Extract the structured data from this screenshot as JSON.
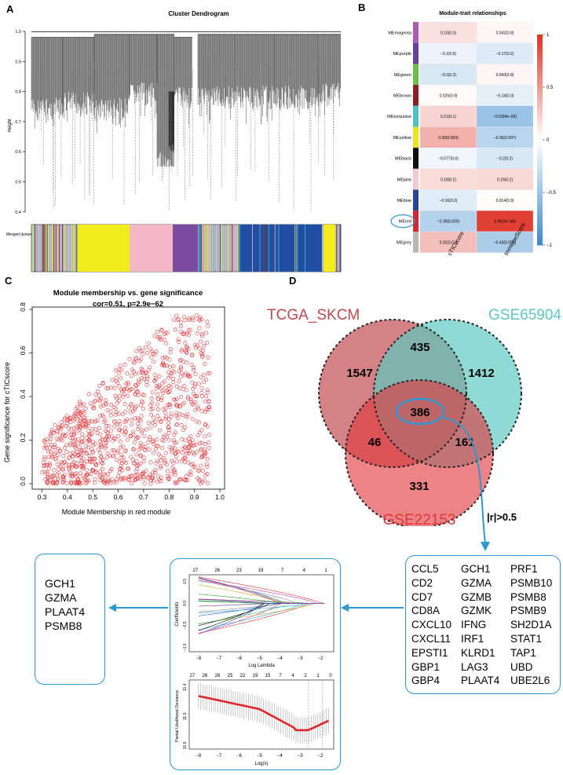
{
  "panels": {
    "a": "A",
    "b": "B",
    "c": "C",
    "d": "D"
  },
  "dendro": {
    "title": "Cluster Dendrogram",
    "ylabel": "Height",
    "yticks": [
      "1.0",
      "0.9",
      "0.8",
      "0.7",
      "0.6",
      "0.5",
      "0.4"
    ],
    "track_label": "Merged dynamic",
    "colors": {
      "gray": "#b5b7c4",
      "yellow": "#f3ec1c",
      "pink": "#f4b7c8",
      "purple": "#7b4aa1",
      "blue": "#1f4ea2",
      "turquoise": "#48c1c4",
      "brown": "#8d2b22"
    }
  },
  "heatmap": {
    "title": "Module-trait relationships",
    "columns": [
      "cTICscore",
      "ImmuneScore"
    ],
    "rows": [
      {
        "name": "MEmagenta",
        "color": "#b158b5",
        "c1": "0.15(0.3)",
        "c2": "0.042(0.8)",
        "v1": 0.15,
        "v2": 0.042
      },
      {
        "name": "MEpurple",
        "color": "#6a3f9f",
        "c1": "−0.1(0.5)",
        "c2": "−0.17(0.2)",
        "v1": -0.1,
        "v2": -0.17
      },
      {
        "name": "MEgreen",
        "color": "#6cc04a",
        "c1": "−0.2(0.2)",
        "c2": "0.043(0.8)",
        "v1": -0.2,
        "v2": 0.043
      },
      {
        "name": "MEbrown",
        "color": "#8c1f1f",
        "c1": "0.025(0.9)",
        "c2": "−0.14(0.3)",
        "v1": 0.025,
        "v2": -0.14
      },
      {
        "name": "MEturquoise",
        "color": "#49c3c6",
        "c1": "0.21(0.1)",
        "c2": "−0.53(4e−05)",
        "v1": 0.21,
        "v2": -0.53
      },
      {
        "name": "MEyellow",
        "color": "#efe41c",
        "c1": "0.39(0.003)",
        "c2": "−0.36(0.007)",
        "v1": 0.39,
        "v2": -0.36
      },
      {
        "name": "MEblack",
        "color": "#111111",
        "c1": "−0.077(0.6)",
        "c2": "−0.2(0.2)",
        "v1": -0.077,
        "v2": -0.2
      },
      {
        "name": "MEpink",
        "color": "#f6c7d1",
        "c1": "0.18(0.2)",
        "c2": "0.19(0.2)",
        "v1": 0.18,
        "v2": 0.19
      },
      {
        "name": "MEblue",
        "color": "#24479c",
        "c1": "−0.16(0.2)",
        "c2": "0.014(0.9)",
        "v1": -0.16,
        "v2": 0.014
      },
      {
        "name": "MEred",
        "color": "#d9252b",
        "c1": "−0.39(0.003)",
        "c2": "0.95(5e−44)",
        "v1": -0.39,
        "v2": 0.95
      },
      {
        "name": "MEgrey",
        "color": "#b7b7b7",
        "c1": "0.32(0.02)",
        "c2": "−0.43(0.001)",
        "v1": 0.32,
        "v2": -0.43
      }
    ],
    "legend_ticks": [
      "1",
      "0.5",
      "0",
      "−0.5",
      "−1"
    ]
  },
  "scatter": {
    "title": "Module membership vs. gene significance",
    "subtitle": "cor=0.51, p=2.9e−62",
    "xlabel": "Module Membership in red module",
    "ylabel": "Gene significance for cTICscore",
    "xticks": [
      "0.3",
      "0.4",
      "0.5",
      "0.6",
      "0.7",
      "0.8",
      "0.9",
      "1.0"
    ],
    "yticks": [
      "0.0",
      "0.2",
      "0.4",
      "0.6",
      "0.8"
    ],
    "color": "#e0262b"
  },
  "chart_data": [
    {
      "type": "scatter",
      "title": "Module membership vs. gene significance",
      "subtitle": "cor=0.51, p=2.9e−62",
      "xlabel": "Module Membership in red module",
      "ylabel": "Gene significance for cTICscore",
      "xlim": [
        0.28,
        1.0
      ],
      "ylim": [
        0.0,
        0.8
      ],
      "n_points": 1050,
      "cor": 0.51,
      "description": "Points spread from x 0.3-0.96, y rising with x; upper envelope reaches 0.78 near x=0.68"
    },
    {
      "type": "heatmap",
      "title": "Module-trait relationships",
      "rows": [
        "MEmagenta",
        "MEpurple",
        "MEgreen",
        "MEbrown",
        "MEturquoise",
        "MEyellow",
        "MEblack",
        "MEpink",
        "MEblue",
        "MEred",
        "MEgrey"
      ],
      "columns": [
        "cTICscore",
        "ImmuneScore"
      ],
      "values": [
        [
          0.15,
          0.042
        ],
        [
          -0.1,
          -0.17
        ],
        [
          -0.2,
          0.043
        ],
        [
          0.025,
          -0.14
        ],
        [
          0.21,
          -0.53
        ],
        [
          0.39,
          -0.36
        ],
        [
          -0.077,
          -0.2
        ],
        [
          0.18,
          0.19
        ],
        [
          -0.16,
          0.014
        ],
        [
          -0.39,
          0.95
        ],
        [
          0.32,
          -0.43
        ]
      ],
      "range": [
        -1,
        1
      ]
    }
  ],
  "venn": {
    "sets": [
      {
        "label": "TCGA_SKCM",
        "color": "#c0474b"
      },
      {
        "label": "GSE65904",
        "color": "#5cc9c1"
      },
      {
        "label": "GSE22153",
        "color": "#e0373c"
      }
    ],
    "counts": {
      "a_only": "1547",
      "b_only": "1412",
      "c_only": "331",
      "ab": "435",
      "ac": "46",
      "bc": "161",
      "abc": "386"
    },
    "threshold": "|r|>0.5"
  },
  "lasso": {
    "top_ticks": [
      "27",
      "26",
      "23",
      "19",
      "7",
      "4",
      "1"
    ],
    "top_ylabel": "Coefficients",
    "top_xlabel": "Log Lambda",
    "top_yticks": [
      "0.5",
      "0.0",
      "−0.5",
      "−1.0"
    ],
    "xticks": [
      "−8",
      "−7",
      "−6",
      "−5",
      "−4",
      "−3",
      "−2"
    ],
    "bot_ticks": [
      "27",
      "26",
      "26",
      "25",
      "22",
      "19",
      "15",
      "7",
      "4",
      "2",
      "1",
      "0"
    ],
    "bot_ylabel": "Partial Likelihood Deviance",
    "bot_xlabel": "Log(λ)",
    "bot_yticks": [
      "11.4",
      "11.0",
      "10.6"
    ]
  },
  "genes": {
    "col1": [
      "CCL5",
      "CD2",
      "CD7",
      "CD8A",
      "CXCL10",
      "CXCL11",
      "EPSTI1",
      "GBP1",
      "GBP4"
    ],
    "col2": [
      "GCH1",
      "GZMA",
      "GZMB",
      "GZMK",
      "IFNG",
      "IRF1",
      "KLRD1",
      "LAG3",
      "PLAAT4"
    ],
    "col3": [
      "PRF1",
      "PSMB10",
      "PSMB8",
      "PSMB9",
      "SH2D1A",
      "STAT1",
      "TAP1",
      "UBD",
      "UBE2L6"
    ]
  },
  "final_genes": [
    "GCH1",
    "GZMA",
    "PLAAT4",
    "PSMB8"
  ],
  "accent": "#2b97d4"
}
